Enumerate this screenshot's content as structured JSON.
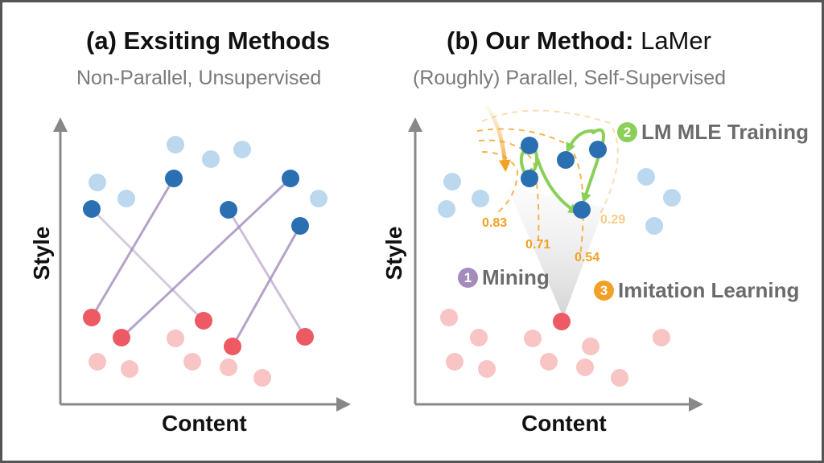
{
  "colors": {
    "style_a_light": "#bcd8ee",
    "style_a_dark": "#2a6fb2",
    "style_b_light": "#f8c4c4",
    "style_b_dark": "#ee5a63",
    "mining": "#a48bbb",
    "lm_mle": "#8bcf5a",
    "imitation": "#f2a126",
    "axis": "#888888"
  },
  "panel_a": {
    "title": "(a) Exsiting Methods",
    "subtitle": "Non-Parallel, Unsupervised",
    "x_label": "Content",
    "y_label": "Style"
  },
  "panel_b": {
    "title_bold": "(b) Our Method:",
    "title_name": "LaMer",
    "subtitle": "(Roughly) Parallel, Self-Supervised",
    "x_label": "Content",
    "y_label": "Style",
    "scores": [
      "0.83",
      "0.71",
      "0.54",
      "0.29"
    ],
    "steps": [
      {
        "number": "1",
        "label": "Mining"
      },
      {
        "number": "2",
        "label": "LM MLE Training"
      },
      {
        "number": "3",
        "label": "Imitation Learning"
      }
    ]
  }
}
